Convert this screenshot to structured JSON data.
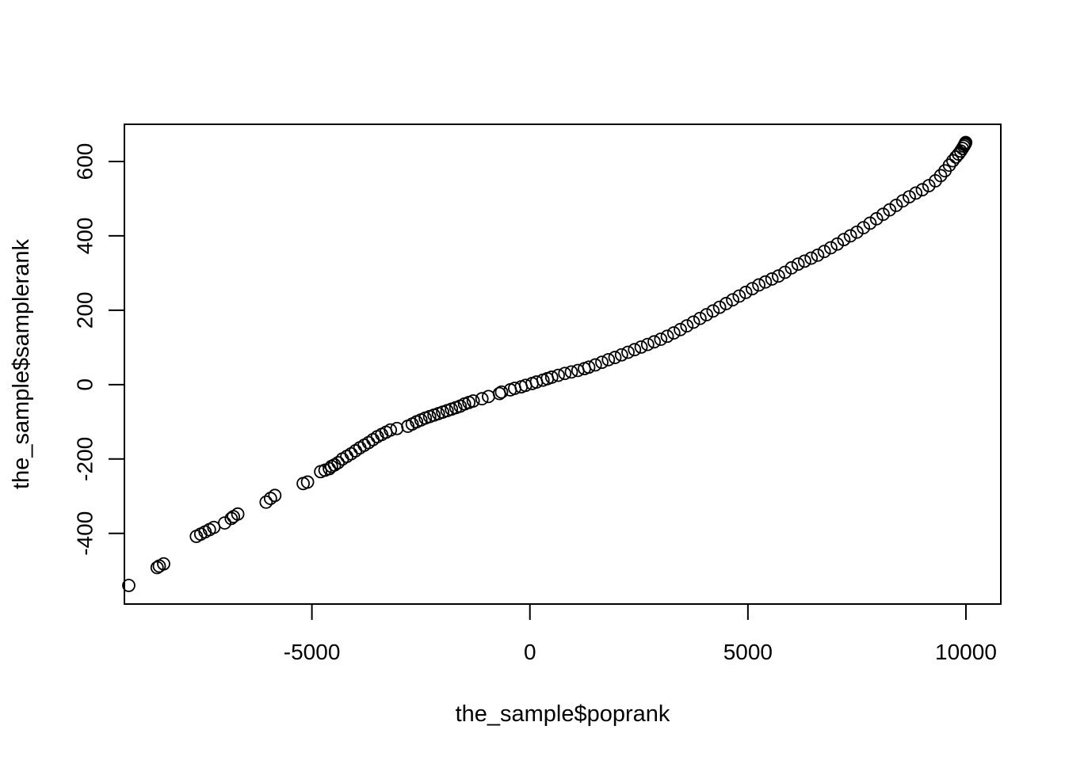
{
  "chart_data": {
    "type": "scatter",
    "title": "",
    "xlabel": "the_sample$poprank",
    "ylabel": "the_sample$samplerank",
    "xlim": [
      -9300,
      10800
    ],
    "ylim": [
      -590,
      700
    ],
    "x_ticks": [
      {
        "value": -5000,
        "label": "-5000"
      },
      {
        "value": 0,
        "label": "0"
      },
      {
        "value": 5000,
        "label": "5000"
      },
      {
        "value": 10000,
        "label": "10000"
      }
    ],
    "y_ticks": [
      {
        "value": -400,
        "label": "-400"
      },
      {
        "value": -200,
        "label": "-200"
      },
      {
        "value": 0,
        "label": "0"
      },
      {
        "value": 200,
        "label": "200"
      },
      {
        "value": 400,
        "label": "400"
      },
      {
        "value": 600,
        "label": "600"
      }
    ],
    "grid": false,
    "legend": "none",
    "marker": "open-circle",
    "colors": {
      "marker": "#000000",
      "axis": "#000000",
      "background": "#ffffff"
    },
    "series": [
      {
        "x": [
          -9200,
          -8550,
          -8500,
          -8400,
          -7650,
          -7550,
          -7450,
          -7350,
          -7250,
          -7000,
          -6850,
          -6800,
          -6700,
          -6050,
          -5950,
          -5850,
          -5200,
          -5100,
          -4800,
          -4700,
          -4600,
          -4550,
          -4480,
          -4400,
          -4300,
          -4200,
          -4100,
          -4000,
          -3900,
          -3800,
          -3700,
          -3600,
          -3500,
          -3400,
          -3300,
          -3200,
          -3050,
          -2800,
          -2700,
          -2600,
          -2500,
          -2400,
          -2300,
          -2200,
          -2100,
          -2000,
          -1900,
          -1800,
          -1700,
          -1600,
          -1500,
          -1400,
          -1300,
          -1100,
          -950,
          -700,
          -650,
          -450,
          -350,
          -200,
          -100,
          50,
          150,
          300,
          400,
          500,
          650,
          800,
          950,
          1100,
          1250,
          1350,
          1500,
          1650,
          1800,
          1950,
          2100,
          2250,
          2400,
          2550,
          2700,
          2850,
          3000,
          3150,
          3300,
          3450,
          3600,
          3750,
          3900,
          4050,
          4200,
          4350,
          4500,
          4650,
          4800,
          4950,
          5100,
          5250,
          5400,
          5550,
          5700,
          5850,
          6000,
          6150,
          6300,
          6450,
          6600,
          6750,
          6900,
          7050,
          7200,
          7350,
          7500,
          7650,
          7800,
          7950,
          8100,
          8250,
          8400,
          8550,
          8700,
          8850,
          9000,
          9150,
          9300,
          9420,
          9520,
          9620,
          9700,
          9770,
          9830,
          9880,
          9920,
          9950,
          9970,
          9985,
          9995
        ],
        "y": [
          -540,
          -492,
          -488,
          -482,
          -408,
          -402,
          -396,
          -390,
          -384,
          -372,
          -360,
          -355,
          -348,
          -316,
          -306,
          -298,
          -266,
          -262,
          -234,
          -230,
          -226,
          -220,
          -216,
          -210,
          -200,
          -193,
          -186,
          -178,
          -170,
          -163,
          -156,
          -148,
          -140,
          -134,
          -128,
          -122,
          -118,
          -112,
          -106,
          -100,
          -95,
          -90,
          -86,
          -82,
          -78,
          -74,
          -70,
          -66,
          -62,
          -58,
          -52,
          -48,
          -44,
          -38,
          -32,
          -24,
          -20,
          -14,
          -10,
          -6,
          -2,
          3,
          7,
          12,
          16,
          20,
          25,
          30,
          34,
          38,
          43,
          47,
          53,
          60,
          67,
          73,
          80,
          87,
          94,
          101,
          108,
          115,
          122,
          130,
          139,
          148,
          158,
          168,
          178,
          188,
          198,
          208,
          218,
          228,
          238,
          248,
          258,
          268,
          276,
          284,
          292,
          302,
          314,
          324,
          332,
          340,
          348,
          358,
          368,
          378,
          390,
          400,
          410,
          422,
          434,
          446,
          458,
          470,
          482,
          494,
          505,
          515,
          524,
          535,
          548,
          562,
          575,
          590,
          602,
          612,
          620,
          628,
          635,
          641,
          645,
          648,
          651
        ]
      }
    ]
  }
}
